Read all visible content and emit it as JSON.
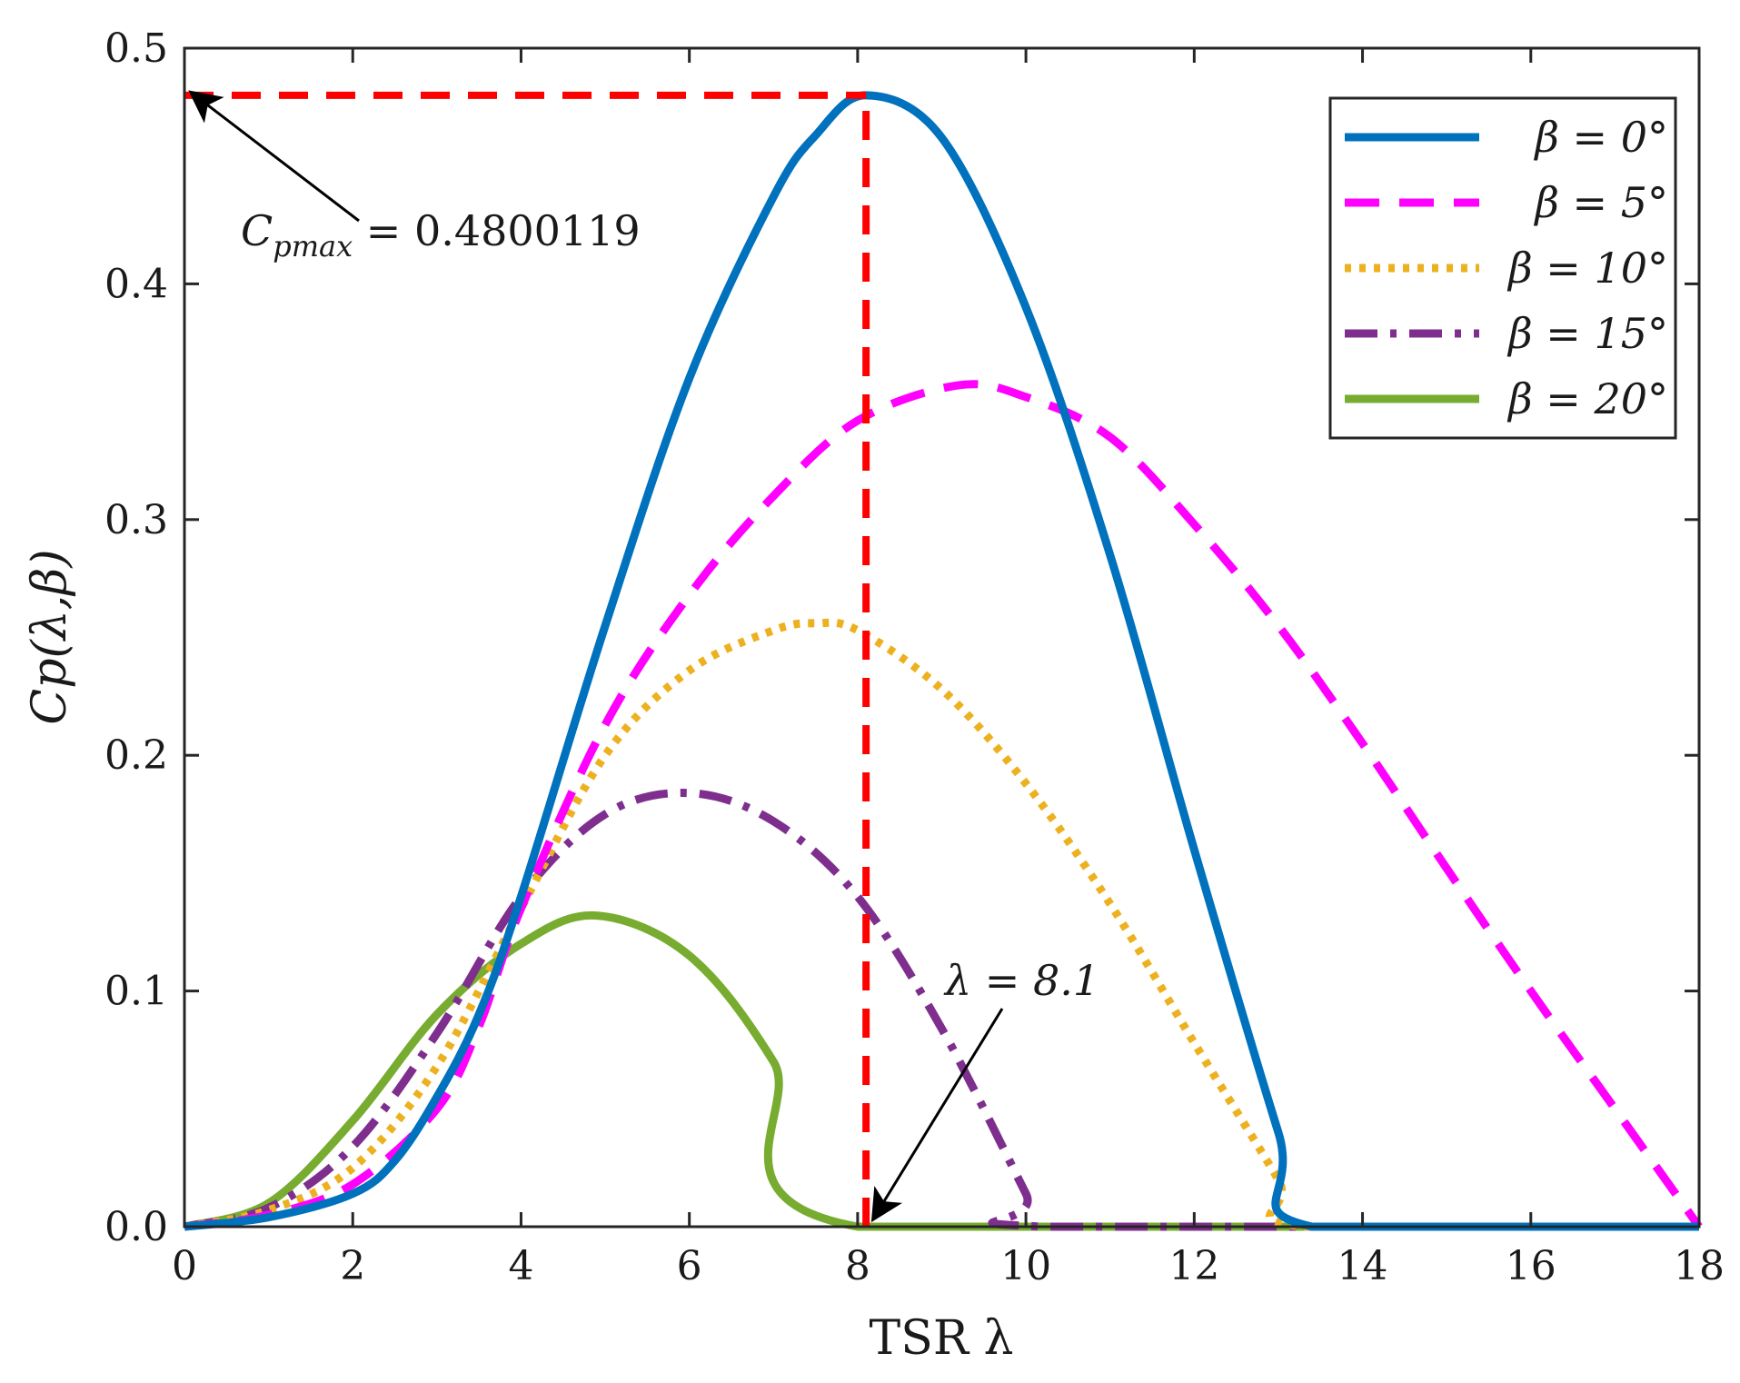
{
  "chart_data": {
    "type": "line",
    "title": "",
    "xlabel": "TSR λ",
    "ylabel": "Cp(λ,β)",
    "xlim": [
      0,
      18
    ],
    "ylim": [
      0,
      0.5
    ],
    "xticks": [
      0,
      2,
      4,
      6,
      8,
      10,
      12,
      14,
      16,
      18
    ],
    "xtick_labels": [
      "0",
      "2",
      "4",
      "6",
      "8",
      "10",
      "12",
      "14",
      "16",
      "18"
    ],
    "yticks": [
      0,
      0.1,
      0.2,
      0.3,
      0.4,
      0.5
    ],
    "ytick_labels": [
      "0.0",
      "0.1",
      "0.2",
      "0.3",
      "0.4",
      "0.5"
    ],
    "grid": false,
    "legend_position": "top-right",
    "series": [
      {
        "name": "β = 0°",
        "color": "#0072BD",
        "style": "solid",
        "x": [
          0,
          1,
          2,
          2.5,
          3,
          3.5,
          4,
          5,
          6,
          7,
          7.5,
          8.1,
          9,
          10,
          11,
          12,
          13,
          13.4,
          18
        ],
        "y": [
          0,
          0.004,
          0.014,
          0.028,
          0.055,
          0.09,
          0.14,
          0.255,
          0.36,
          0.437,
          0.463,
          0.48,
          0.462,
          0.39,
          0.285,
          0.16,
          0.04,
          0,
          0
        ]
      },
      {
        "name": "β = 5°",
        "color": "#FF00FF",
        "style": "dashed",
        "x": [
          0,
          1,
          2,
          3,
          3.5,
          4,
          5,
          6,
          7,
          8,
          9.2,
          10,
          11,
          12,
          13,
          14,
          15,
          16,
          17,
          18
        ],
        "y": [
          0,
          0.005,
          0.018,
          0.05,
          0.085,
          0.135,
          0.213,
          0.268,
          0.31,
          0.342,
          0.357,
          0.352,
          0.335,
          0.298,
          0.255,
          0.205,
          0.152,
          0.1,
          0.05,
          0
        ]
      },
      {
        "name": "β = 10°",
        "color": "#EDB120",
        "style": "dotted",
        "x": [
          0,
          1,
          2,
          3,
          4,
          5,
          6,
          7,
          7.5,
          8,
          9,
          10,
          11,
          12,
          13,
          13.3,
          18
        ],
        "y": [
          0,
          0.007,
          0.025,
          0.068,
          0.135,
          0.2,
          0.236,
          0.253,
          0.256,
          0.253,
          0.228,
          0.188,
          0.137,
          0.078,
          0.02,
          0,
          0
        ]
      },
      {
        "name": "β = 15°",
        "color": "#7E2F8E",
        "style": "dashdot",
        "x": [
          0,
          1,
          2,
          3,
          4,
          5,
          6,
          7,
          8,
          9,
          10,
          10.2,
          18
        ],
        "y": [
          0,
          0.008,
          0.034,
          0.082,
          0.14,
          0.175,
          0.184,
          0.172,
          0.14,
          0.084,
          0.014,
          0,
          0
        ]
      },
      {
        "name": "β = 20°",
        "color": "#77AC30",
        "style": "solid",
        "x": [
          0,
          1,
          2,
          3,
          4,
          4.9,
          6,
          7,
          8,
          18
        ],
        "y": [
          0,
          0.01,
          0.045,
          0.09,
          0.12,
          0.132,
          0.115,
          0.07,
          0,
          0
        ]
      }
    ],
    "reference_lines": [
      {
        "type": "horizontal",
        "y": 0.48,
        "x_from": 0,
        "x_to": 8.1,
        "color": "#FF0000",
        "style": "dashed"
      },
      {
        "type": "vertical",
        "x": 8.1,
        "y_from": 0,
        "y_to": 0.48,
        "color": "#FF0000",
        "style": "dashed"
      }
    ],
    "annotations": [
      {
        "id": "cpmax",
        "label": "C",
        "sub": "pmax",
        "rest": " = 0.4800119",
        "point": [
          0,
          0.48
        ]
      },
      {
        "id": "lambda",
        "label": "λ = 8.1",
        "point": [
          8.1,
          0
        ]
      }
    ]
  }
}
